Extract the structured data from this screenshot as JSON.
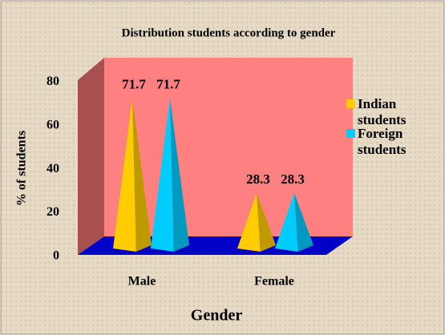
{
  "chart_data": {
    "type": "pyramid",
    "title": "Distribution students according to  gender",
    "x_label": "Gender",
    "y_label": "% of students",
    "categories": [
      "Male",
      "Female"
    ],
    "series": [
      {
        "name": "Indian students",
        "color": "#ffcc00",
        "values": [
          71.7,
          28.3
        ]
      },
      {
        "name": "Foreign students",
        "color": "#00ccff",
        "values": [
          71.7,
          28.3
        ]
      }
    ],
    "ylim": [
      0,
      90
    ],
    "yticks": [
      0,
      20,
      40,
      60,
      80
    ],
    "legend": "right"
  }
}
